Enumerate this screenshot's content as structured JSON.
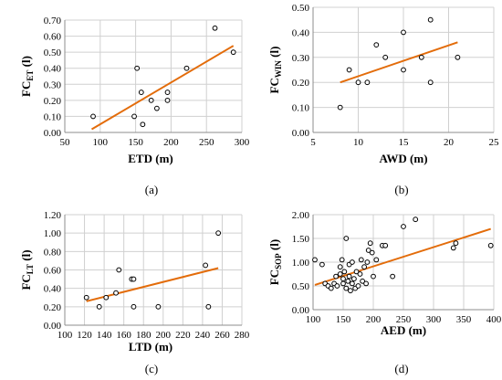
{
  "chart_data": [
    {
      "type": "scatter",
      "ylabel_main": "FC",
      "ylabel_sub": "ET",
      "ylabel_unit": "(l)",
      "xlabel": "ETD (m)",
      "caption": "(a)",
      "xlim": [
        50,
        300
      ],
      "ylim": [
        0,
        0.7
      ],
      "xticks": [
        50,
        100,
        150,
        200,
        250,
        300
      ],
      "yticks": [
        "0.00",
        "0.10",
        "0.20",
        "0.30",
        "0.40",
        "0.50",
        "0.60",
        "0.70"
      ],
      "points": [
        [
          90,
          0.1
        ],
        [
          148,
          0.1
        ],
        [
          152,
          0.4
        ],
        [
          158,
          0.25
        ],
        [
          160,
          0.05
        ],
        [
          172,
          0.2
        ],
        [
          180,
          0.15
        ],
        [
          195,
          0.2
        ],
        [
          195,
          0.25
        ],
        [
          222,
          0.4
        ],
        [
          262,
          0.65
        ],
        [
          288,
          0.5
        ]
      ],
      "trendline": [
        [
          88,
          0.02
        ],
        [
          288,
          0.54
        ]
      ],
      "trend_color": "#e36c0a"
    },
    {
      "type": "scatter",
      "ylabel_main": "FC",
      "ylabel_sub": "WIN",
      "ylabel_unit": "(l)",
      "xlabel": "AWD (m)",
      "caption": "(b)",
      "xlim": [
        5,
        25
      ],
      "ylim": [
        0,
        0.5
      ],
      "xticks": [
        5,
        10,
        15,
        20,
        25
      ],
      "yticks": [
        "0.00",
        "0.10",
        "0.20",
        "0.30",
        "0.40",
        "0.50"
      ],
      "points": [
        [
          8,
          0.1
        ],
        [
          9,
          0.25
        ],
        [
          10,
          0.2
        ],
        [
          11,
          0.2
        ],
        [
          12,
          0.35
        ],
        [
          13,
          0.3
        ],
        [
          15,
          0.25
        ],
        [
          15,
          0.4
        ],
        [
          17,
          0.3
        ],
        [
          18,
          0.2
        ],
        [
          18,
          0.45
        ],
        [
          21,
          0.3
        ]
      ],
      "trendline": [
        [
          8,
          0.2
        ],
        [
          21,
          0.36
        ]
      ],
      "trend_color": "#e36c0a"
    },
    {
      "type": "scatter",
      "ylabel_main": "FC",
      "ylabel_sub": "LT",
      "ylabel_unit": "(l)",
      "xlabel": "LTD (m)",
      "caption": "(c)",
      "xlim": [
        100,
        280
      ],
      "ylim": [
        0,
        1.2
      ],
      "xticks": [
        100,
        120,
        140,
        160,
        180,
        200,
        220,
        240,
        260,
        280
      ],
      "yticks": [
        "0.00",
        "0.20",
        "0.40",
        "0.60",
        "0.80",
        "1.00",
        "1.20"
      ],
      "points": [
        [
          122,
          0.3
        ],
        [
          135,
          0.2
        ],
        [
          142,
          0.3
        ],
        [
          152,
          0.35
        ],
        [
          155,
          0.6
        ],
        [
          168,
          0.5
        ],
        [
          170,
          0.5
        ],
        [
          170,
          0.2
        ],
        [
          195,
          0.2
        ],
        [
          243,
          0.65
        ],
        [
          246,
          0.2
        ],
        [
          256,
          1.0
        ]
      ],
      "trendline": [
        [
          122,
          0.26
        ],
        [
          256,
          0.62
        ]
      ],
      "trend_color": "#e36c0a"
    },
    {
      "type": "scatter",
      "ylabel_main": "FC",
      "ylabel_sub": "SOP",
      "ylabel_unit": "(l)",
      "xlabel": "AED (m)",
      "caption": "(d)",
      "xlim": [
        100,
        400
      ],
      "ylim": [
        0,
        2.0
      ],
      "xticks": [
        100,
        150,
        200,
        250,
        300,
        350,
        400
      ],
      "yticks": [
        "0.00",
        "0.50",
        "1.00",
        "1.50",
        "2.00"
      ],
      "points": [
        [
          103,
          1.05
        ],
        [
          115,
          0.95
        ],
        [
          120,
          0.55
        ],
        [
          125,
          0.5
        ],
        [
          130,
          0.45
        ],
        [
          135,
          0.55
        ],
        [
          138,
          0.7
        ],
        [
          140,
          0.5
        ],
        [
          145,
          0.75
        ],
        [
          145,
          0.9
        ],
        [
          148,
          1.05
        ],
        [
          150,
          0.65
        ],
        [
          150,
          0.55
        ],
        [
          152,
          0.8
        ],
        [
          155,
          1.5
        ],
        [
          155,
          0.45
        ],
        [
          158,
          0.6
        ],
        [
          160,
          0.7
        ],
        [
          160,
          0.95
        ],
        [
          162,
          0.4
        ],
        [
          165,
          0.55
        ],
        [
          165,
          1.0
        ],
        [
          168,
          0.65
        ],
        [
          170,
          0.45
        ],
        [
          172,
          0.8
        ],
        [
          175,
          0.5
        ],
        [
          178,
          0.75
        ],
        [
          180,
          1.05
        ],
        [
          182,
          0.6
        ],
        [
          185,
          0.9
        ],
        [
          188,
          0.55
        ],
        [
          190,
          1.0
        ],
        [
          192,
          1.25
        ],
        [
          195,
          1.4
        ],
        [
          198,
          1.2
        ],
        [
          200,
          0.7
        ],
        [
          205,
          1.05
        ],
        [
          215,
          1.35
        ],
        [
          220,
          1.35
        ],
        [
          232,
          0.7
        ],
        [
          250,
          1.75
        ],
        [
          270,
          1.9
        ],
        [
          333,
          1.3
        ],
        [
          337,
          1.4
        ],
        [
          395,
          1.35
        ]
      ],
      "trendline": [
        [
          103,
          0.52
        ],
        [
          395,
          1.7
        ]
      ],
      "trend_color": "#e36c0a"
    }
  ]
}
